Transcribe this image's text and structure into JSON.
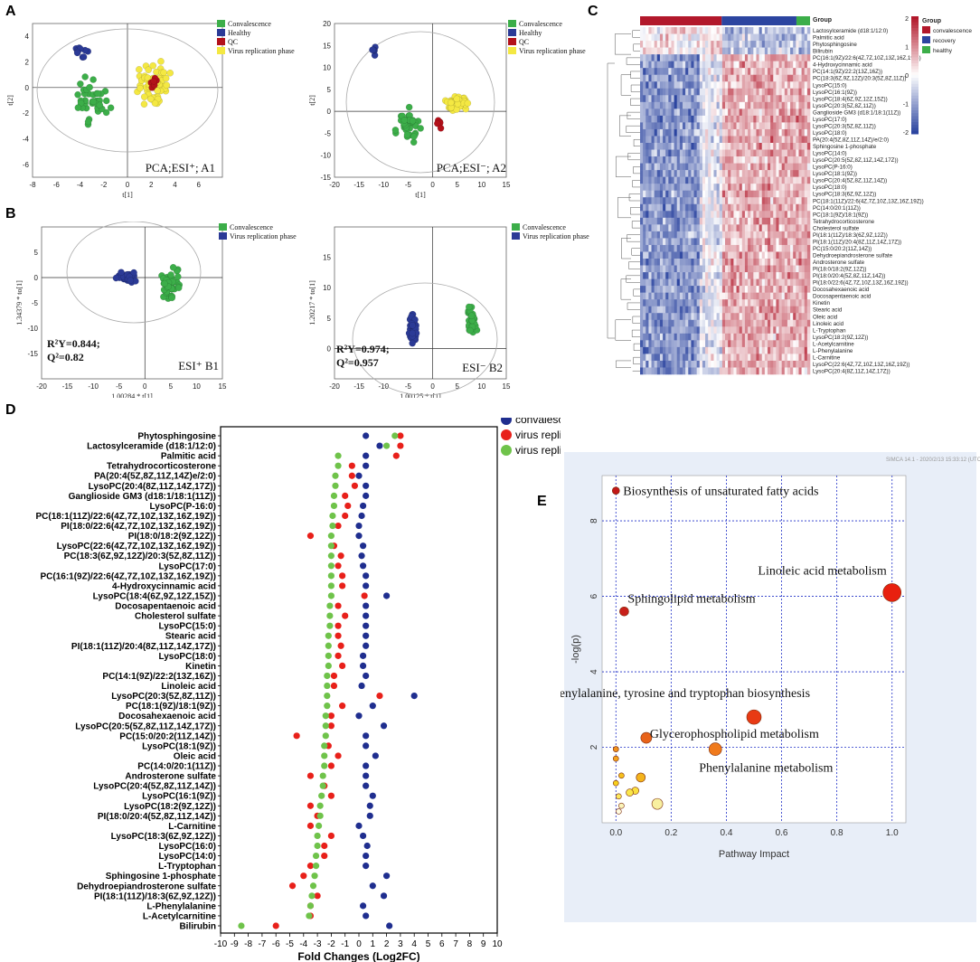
{
  "panel_letters": {
    "A": "A",
    "B": "B",
    "C": "C",
    "D": "D",
    "E": "E"
  },
  "colors": {
    "green": "#3cae49",
    "blue": "#2b3a96",
    "red": "#b3111a",
    "yellow": "#f4e842",
    "heat_red": "#b2182b",
    "heat_blue": "#2c45a0",
    "bar_green": "#6fbf45"
  },
  "chart_data": [
    {
      "id": "A1",
      "type": "scatter",
      "title": "PCA;ESI⁺; A1",
      "xlabel": "t[1]",
      "ylabel": "t[2]",
      "xlim": [
        -8,
        8
      ],
      "ylim": [
        -7,
        5
      ],
      "xticks": [
        -8,
        -6,
        -4,
        -2,
        0,
        2,
        4,
        6
      ],
      "yticks": [
        4,
        2,
        0,
        -2,
        -4,
        -6
      ],
      "legend": [
        "Convalescence",
        "Healthy",
        "QC",
        "Virus replication phase"
      ]
    },
    {
      "id": "A2",
      "type": "scatter",
      "title": "PCA;ESI⁻; A2",
      "xlabel": "t[1]",
      "ylabel": "t[2]",
      "xlim": [
        -20,
        15
      ],
      "ylim": [
        -15,
        20
      ],
      "xticks": [
        -20,
        -15,
        -10,
        -5,
        0,
        5,
        10,
        15
      ],
      "yticks": [
        20,
        15,
        10,
        5,
        0,
        -5,
        -10,
        -15
      ],
      "legend": [
        "Convalescence",
        "Healthy",
        "QC",
        "Virus replication phase"
      ]
    },
    {
      "id": "B1",
      "type": "scatter",
      "title": "ESI⁺ B1",
      "xlabel": "1.00284 * t[1]",
      "ylabel": "1.34379 * to[1]",
      "xlim": [
        -20,
        15
      ],
      "ylim": [
        -20,
        10
      ],
      "xticks": [
        -20,
        -15,
        -10,
        -5,
        0,
        5,
        10,
        15
      ],
      "yticks": [
        5,
        0,
        -5,
        -10,
        -15
      ],
      "r2y": "R²Y=0.844;",
      "q2": "Q²=0.82",
      "legend": [
        "Convalescence",
        "Virus replication phase"
      ]
    },
    {
      "id": "B2",
      "type": "scatter",
      "title": "ESI⁻ B2",
      "xlabel": "1.00125 * t[1]",
      "ylabel": "1.20217 * to[1]",
      "xlim": [
        -20,
        15
      ],
      "ylim": [
        -5,
        20
      ],
      "xticks": [
        -20,
        -15,
        -10,
        -5,
        0,
        5,
        10,
        15
      ],
      "yticks": [
        15,
        10,
        5,
        0
      ],
      "r2y": "R²Y=0.974;",
      "q2": "Q²=0.957",
      "legend": [
        "Convalescence",
        "Virus replication phase"
      ]
    },
    {
      "id": "C",
      "type": "heatmap",
      "group_title": "Group",
      "groups": [
        "convalescence",
        "recovery",
        "healthy"
      ],
      "scale_ticks": [
        "2",
        "1",
        "0",
        "-1",
        "-2"
      ],
      "rows": [
        "Lactosylceramide (d18:1/12:0)",
        "Palmitic acid",
        "Phytosphingosine",
        "Bilirubin",
        "PC(16:1(9Z)/22:6(4Z,7Z,10Z,13Z,16Z,19Z))",
        "4-Hydroxycinnamic acid",
        "PC(14:1(9Z)/22:2(13Z,16Z))",
        "PC(18:3(6Z,9Z,12Z)/20:3(5Z,8Z,11Z))",
        "LysoPC(15:0)",
        "LysoPC(16:1(9Z))",
        "LysoPC(18:4(6Z,9Z,12Z,15Z))",
        "LysoPC(20:3(5Z,8Z,11Z))",
        "Ganglioside GM3 (d18:1/18:1(11Z))",
        "LysoPC(17:0)",
        "LysoPC(20:3(5Z,8Z,11Z))",
        "LysoPC(18:0)",
        "PA(20:4(5Z,8Z,11Z,14Z)/e/2:0)",
        "Sphingosine 1-phosphate",
        "LysoPC(14:0)",
        "LysoPC(20:5(5Z,8Z,11Z,14Z,17Z))",
        "LysoPC(P-16:0)",
        "LysoPC(18:1(9Z))",
        "LysoPC(20:4(5Z,8Z,11Z,14Z))",
        "LysoPC(18:0)",
        "LysoPC(18:3(6Z,9Z,12Z))",
        "PC(18:1(11Z)/22:6(4Z,7Z,10Z,13Z,16Z,19Z))",
        "PC(14:0/20:1(11Z))",
        "PC(18:1(9Z)/18:1(9Z))",
        "Tetrahydrocorticosterone",
        "Cholesterol sulfate",
        "PI(18:1(11Z)/18:3(6Z,9Z,12Z))",
        "PI(18:1(11Z)/20:4(8Z,11Z,14Z,17Z))",
        "PC(15:0/20:2(11Z,14Z))",
        "Dehydroepiandrosterone sulfate",
        "Androsterone sulfate",
        "PI(18:0/18:2(9Z,12Z))",
        "PI(18:0/20:4(5Z,8Z,11Z,14Z))",
        "PI(18:0/22:6(4Z,7Z,10Z,13Z,16Z,19Z))",
        "Docosahexaenoic acid",
        "Docosapentaenoic acid",
        "Kinetin",
        "Stearic acid",
        "Oleic acid",
        "Linoleic acid",
        "L-Tryptophan",
        "LysoPC(18:2(9Z,12Z))",
        "L-Acetylcarnitine",
        "L-Phenylalanine",
        "L-Carnitine",
        "LysoPC(22:6(4Z,7Z,10Z,13Z,16Z,19Z))",
        "LysoPC(20:4(8Z,11Z,14Z,17Z))"
      ]
    },
    {
      "id": "D",
      "type": "scatter",
      "xlabel": "Fold Changes (Log2FC)",
      "xlim": [
        -10,
        10
      ],
      "xticks": [
        -10,
        -9,
        -8,
        -7,
        -6,
        -5,
        -4,
        -3,
        -2,
        -1,
        0,
        1,
        2,
        3,
        4,
        5,
        6,
        7,
        8,
        9,
        10
      ],
      "legend": [
        "convalescence vs heathy",
        "virus replication phase vs heathy",
        "virus replication phase vs convalescence"
      ],
      "categories": [
        "Phytosphingosine",
        "Lactosylceramide (d18:1/12:0)",
        "Palmitic acid",
        "Tetrahydrocorticosterone",
        "PA(20:4(5Z,8Z,11Z,14Z)e/2:0)",
        "LysoPC(20:4(8Z,11Z,14Z,17Z))",
        "Ganglioside GM3 (d18:1/18:1(11Z))",
        "LysoPC(P-16:0)",
        "PC(18:1(11Z)/22:6(4Z,7Z,10Z,13Z,16Z,19Z))",
        "PI(18:0/22:6(4Z,7Z,10Z,13Z,16Z,19Z))",
        "PI(18:0/18:2(9Z,12Z))",
        "LysoPC(22:6(4Z,7Z,10Z,13Z,16Z,19Z))",
        "PC(18:3(6Z,9Z,12Z)/20:3(5Z,8Z,11Z))",
        "LysoPC(17:0)",
        "PC(16:1(9Z)/22:6(4Z,7Z,10Z,13Z,16Z,19Z))",
        "4-Hydroxycinnamic acid",
        "LysoPC(18:4(6Z,9Z,12Z,15Z))",
        "Docosapentaenoic acid",
        "Cholesterol sulfate",
        "LysoPC(15:0)",
        "Stearic acid",
        "PI(18:1(11Z)/20:4(8Z,11Z,14Z,17Z))",
        "LysoPC(18:0)",
        "Kinetin",
        "PC(14:1(9Z)/22:2(13Z,16Z))",
        "Linoleic acid",
        "LysoPC(20:3(5Z,8Z,11Z))",
        "PC(18:1(9Z)/18:1(9Z))",
        "Docosahexaenoic acid",
        "LysoPC(20:5(5Z,8Z,11Z,14Z,17Z))",
        "PC(15:0/20:2(11Z,14Z))",
        "LysoPC(18:1(9Z))",
        "Oleic acid",
        "PC(14:0/20:1(11Z))",
        "Androsterone sulfate",
        "LysoPC(20:4(5Z,8Z,11Z,14Z))",
        "LysoPC(16:1(9Z))",
        "LysoPC(18:2(9Z,12Z))",
        "PI(18:0/20:4(5Z,8Z,11Z,14Z))",
        "L-Carnitine",
        "LysoPC(18:3(6Z,9Z,12Z))",
        "LysoPC(16:0)",
        "LysoPC(14:0)",
        "L-Tryptophan",
        "Sphingosine 1-phosphate",
        "Dehydroepiandrosterone sulfate",
        "PI(18:1(11Z)/18:3(6Z,9Z,12Z))",
        "L-Phenylalanine",
        "L-Acetylcarnitine",
        "Bilirubin"
      ],
      "series": [
        {
          "name": "convalescence vs heathy",
          "color": "#1f2e8f",
          "values": [
            0.5,
            1.5,
            0.5,
            0.5,
            0,
            0.5,
            0.5,
            0.3,
            0.2,
            0,
            0,
            0.3,
            0.2,
            0.3,
            0.5,
            0.5,
            2,
            0.5,
            0.5,
            0.5,
            0.5,
            0.5,
            0.3,
            0.3,
            0.5,
            0.2,
            4,
            1,
            0,
            1.8,
            0.5,
            0.5,
            1.2,
            0.5,
            0.5,
            0.5,
            1,
            0.8,
            0.8,
            0,
            0.3,
            0.6,
            0.5,
            0.5,
            2,
            1,
            1.8,
            0.3,
            0.5,
            2.2
          ]
        },
        {
          "name": "virus replication phase vs heathy",
          "color": "#e8201a",
          "values": [
            3,
            3,
            2.7,
            -0.5,
            -0.5,
            -0.3,
            -1,
            -0.8,
            -1,
            -1.5,
            -3.5,
            -1.8,
            -1.3,
            -1.5,
            -1.2,
            -1.2,
            0.4,
            -1.5,
            -1,
            -1.5,
            -1.5,
            -1.3,
            -1.5,
            -1.2,
            -1.8,
            -1.8,
            1.5,
            -1.2,
            -2,
            -2,
            -4.5,
            -2.2,
            -1.5,
            -2,
            -3.5,
            -2.5,
            -2,
            -3.5,
            -3,
            -3.5,
            -2,
            -2.5,
            -2.5,
            -3.5,
            -4,
            -4.8,
            -3,
            -3.5,
            -3.5,
            -6
          ]
        },
        {
          "name": "virus replication phase vs convalescence",
          "color": "#6fc34a",
          "values": [
            2.6,
            2,
            -1.5,
            -1.5,
            -1.7,
            -1.7,
            -1.8,
            -1.8,
            -1.9,
            -1.9,
            -2,
            -2,
            -2,
            -2,
            -2,
            -2,
            -2,
            -2.1,
            -2.1,
            -2.1,
            -2.2,
            -2.2,
            -2.2,
            -2.2,
            -2.3,
            -2.3,
            -2.3,
            -2.3,
            -2.4,
            -2.4,
            -2.4,
            -2.5,
            -2.5,
            -2.5,
            -2.6,
            -2.6,
            -2.7,
            -2.8,
            -2.8,
            -2.9,
            -3,
            -3,
            -3.1,
            -3.1,
            -3.2,
            -3.3,
            -3.4,
            -3.5,
            -3.6,
            -8.5
          ]
        }
      ]
    },
    {
      "id": "E",
      "type": "scatter",
      "header": "SIMCA 14.1 - 2020/2/13 15:33:12 (UTC+",
      "xlabel": "Pathway Impact",
      "ylabel": "-log(p)",
      "xlim": [
        -0.05,
        1.05
      ],
      "ylim": [
        0,
        9.2
      ],
      "xticks": [
        "0.0",
        "0.2",
        "0.4",
        "0.6",
        "0.8",
        "1.0"
      ],
      "yticks": [
        "2",
        "4",
        "6",
        "8"
      ],
      "pathways": [
        {
          "label": "Biosynthesis of unsaturated fatty acids",
          "impact": 0,
          "logp": 8.8,
          "size": 4,
          "color": "#c21818"
        },
        {
          "label": "Linoleic acid metabolism",
          "impact": 1.0,
          "logp": 6.1,
          "size": 10,
          "color": "#e8200f"
        },
        {
          "label": "Sphingolipid metabolism",
          "impact": 0.03,
          "logp": 5.6,
          "size": 5,
          "color": "#c8201a"
        },
        {
          "label": "Phenylalanine, tyrosine and tryptophan biosynthesis",
          "impact": 0.5,
          "logp": 2.8,
          "size": 8,
          "color": "#e83a14"
        },
        {
          "label": "Glycerophospholipid metabolism",
          "impact": 0.11,
          "logp": 2.25,
          "size": 6,
          "color": "#e8631a"
        },
        {
          "label": "Phenylalanine metabolism",
          "impact": 0.36,
          "logp": 1.95,
          "size": 7,
          "color": "#f07a1c"
        },
        {
          "label": "",
          "impact": 0,
          "logp": 1.95,
          "size": 3,
          "color": "#f0901c"
        },
        {
          "label": "",
          "impact": 0,
          "logp": 1.7,
          "size": 3,
          "color": "#f4a21c"
        },
        {
          "label": "",
          "impact": 0.09,
          "logp": 1.2,
          "size": 5,
          "color": "#f4b41c"
        },
        {
          "label": "",
          "impact": 0.02,
          "logp": 1.25,
          "size": 3,
          "color": "#f6c01c"
        },
        {
          "label": "",
          "impact": 0,
          "logp": 1.05,
          "size": 3,
          "color": "#f8d01c"
        },
        {
          "label": "",
          "impact": 0.07,
          "logp": 0.85,
          "size": 4,
          "color": "#fae040"
        },
        {
          "label": "",
          "impact": 0.05,
          "logp": 0.8,
          "size": 4,
          "color": "#fae64a"
        },
        {
          "label": "",
          "impact": 0.01,
          "logp": 0.7,
          "size": 3,
          "color": "#fbe860"
        },
        {
          "label": "",
          "impact": 0.15,
          "logp": 0.5,
          "size": 6,
          "color": "#f8f0a0"
        },
        {
          "label": "",
          "impact": 0.02,
          "logp": 0.45,
          "size": 3,
          "color": "#fbf4b8"
        },
        {
          "label": "",
          "impact": 0.01,
          "logp": 0.3,
          "size": 3,
          "color": "#fffbe0"
        }
      ]
    }
  ]
}
